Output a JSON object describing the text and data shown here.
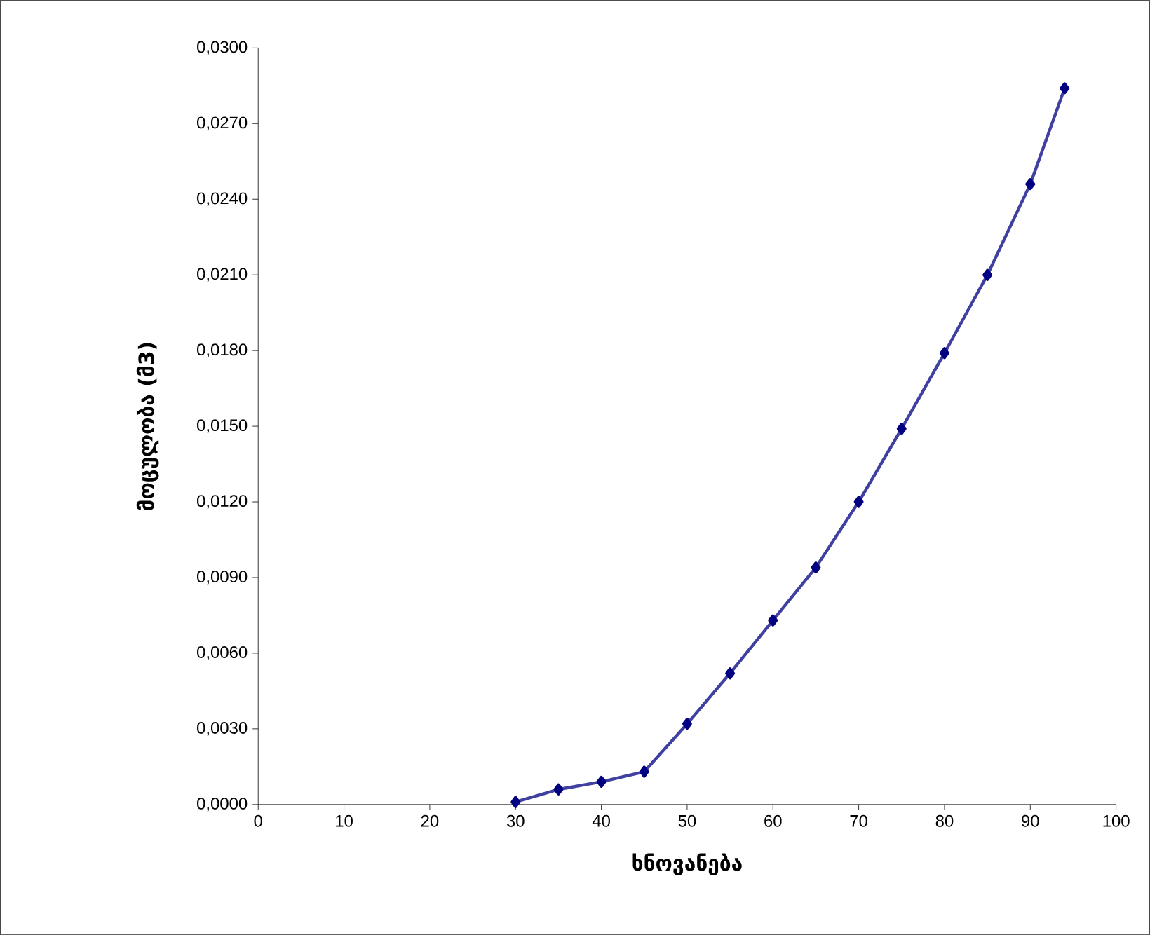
{
  "chart_data": {
    "type": "line",
    "xlabel": "ხნოვანება",
    "ylabel": "მოცულობა (მ3)",
    "x": [
      30,
      35,
      40,
      45,
      50,
      55,
      60,
      65,
      70,
      75,
      80,
      85,
      90,
      94
    ],
    "series": [
      {
        "color": "#000080",
        "values": [
          0.0001,
          0.0006,
          0.0009,
          0.0013,
          0.0032,
          0.0052,
          0.0073,
          0.0094,
          0.012,
          0.0149,
          0.0179,
          0.021,
          0.0246,
          0.0284
        ]
      }
    ],
    "xlim": [
      0,
      100
    ],
    "xticks": [
      0,
      10,
      20,
      30,
      40,
      50,
      60,
      70,
      80,
      90,
      100
    ],
    "ylim": [
      0,
      0.03
    ],
    "yticks": [
      {
        "value": 0,
        "label": "0,0000"
      },
      {
        "value": 0.003,
        "label": "0,0030"
      },
      {
        "value": 0.006,
        "label": "0,0060"
      },
      {
        "value": 0.009,
        "label": "0,0090"
      },
      {
        "value": 0.012,
        "label": "0,0120"
      },
      {
        "value": 0.015,
        "label": "0,0150"
      },
      {
        "value": 0.018,
        "label": "0,0180"
      },
      {
        "value": 0.021,
        "label": "0,0210"
      },
      {
        "value": 0.024,
        "label": "0,0240"
      },
      {
        "value": 0.027,
        "label": "0,0270"
      },
      {
        "value": 0.03,
        "label": "0,0300"
      }
    ],
    "marker": "diamond",
    "line_style": "solid",
    "grid": false
  }
}
